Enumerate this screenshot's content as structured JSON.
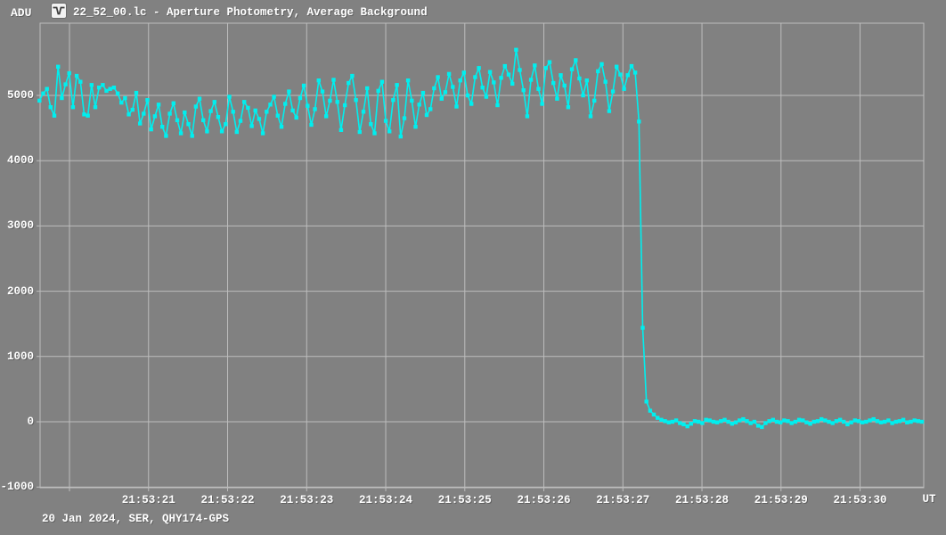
{
  "header": {
    "y_axis_unit": "ADU",
    "icon": "lightcurve-dip-icon",
    "title": "22_52_00.lc - Aperture Photometry, Average Background"
  },
  "footer": {
    "recording_info": "20 Jan 2024, SER, QHY174-GPS",
    "x_axis_unit": "UT"
  },
  "colors": {
    "background": "#818181",
    "grid": "#bdbdbd",
    "text": "#ffffff",
    "curve": "#00efef"
  },
  "chart_data": {
    "type": "line",
    "title": "22_52_00.lc - Aperture Photometry, Average Background",
    "xlabel": "UT",
    "ylabel": "ADU",
    "grid": true,
    "legend": false,
    "marker": "square",
    "description": "Aperture photometry light curve of average background; flux ~5000 ADU drops sharply to ~0 ADU at about 21:53:27.2 UT (occultation-style drop).",
    "t_range": [
      19.628,
      30.805
    ],
    "v_range": [
      -1011,
      6107
    ],
    "y_ticks": [
      {
        "v": 5000,
        "label": "5000"
      },
      {
        "v": 4000,
        "label": "4000"
      },
      {
        "v": 3000,
        "label": "3000"
      },
      {
        "v": 2000,
        "label": "2000"
      },
      {
        "v": 1000,
        "label": "1000"
      },
      {
        "v": 0,
        "label": "0"
      },
      {
        "v": -1000,
        "label": "-1000"
      }
    ],
    "x_ticks": [
      {
        "t": 20,
        "label": ""
      },
      {
        "t": 21,
        "label": "21:53:21"
      },
      {
        "t": 22,
        "label": "21:53:22"
      },
      {
        "t": 23,
        "label": "21:53:23"
      },
      {
        "t": 24,
        "label": "21:53:24"
      },
      {
        "t": 25,
        "label": "21:53:25"
      },
      {
        "t": 26,
        "label": "21:53:26"
      },
      {
        "t": 27,
        "label": "21:53:27"
      },
      {
        "t": 28,
        "label": "21:53:28"
      },
      {
        "t": 29,
        "label": "21:53:29"
      },
      {
        "t": 30,
        "label": "21:53:30"
      }
    ],
    "time_base": "seconds after 21:53:00 UT",
    "t_start": 19.62,
    "dt": 0.0471,
    "adu": [
      4920,
      5030,
      5100,
      4820,
      4690,
      5440,
      4960,
      5170,
      5340,
      4820,
      5300,
      5210,
      4710,
      4690,
      5160,
      4820,
      5120,
      5160,
      5070,
      5100,
      5120,
      5030,
      4890,
      4960,
      4710,
      4780,
      5040,
      4570,
      4720,
      4930,
      4480,
      4680,
      4860,
      4520,
      4380,
      4720,
      4880,
      4620,
      4420,
      4740,
      4560,
      4380,
      4830,
      4950,
      4620,
      4450,
      4760,
      4900,
      4670,
      4450,
      4560,
      4980,
      4750,
      4440,
      4610,
      4900,
      4810,
      4530,
      4770,
      4640,
      4420,
      4750,
      4860,
      4980,
      4690,
      4520,
      4870,
      5060,
      4770,
      4660,
      4960,
      5150,
      4840,
      4550,
      4790,
      5230,
      5060,
      4680,
      4920,
      5240,
      4900,
      4470,
      4850,
      5190,
      5300,
      4930,
      4440,
      4750,
      5110,
      4560,
      4420,
      5070,
      5210,
      4610,
      4450,
      4930,
      5160,
      4370,
      4650,
      5230,
      4920,
      4520,
      4860,
      5040,
      4700,
      4790,
      5110,
      5280,
      4950,
      5050,
      5330,
      5130,
      4830,
      5230,
      5350,
      5000,
      4870,
      5280,
      5420,
      5120,
      4980,
      5360,
      5200,
      4850,
      5270,
      5450,
      5320,
      5180,
      5700,
      5390,
      5080,
      4680,
      5240,
      5460,
      5100,
      4870,
      5420,
      5510,
      5190,
      4950,
      5310,
      5150,
      4820,
      5400,
      5540,
      5260,
      5000,
      5230,
      4680,
      4920,
      5370,
      5480,
      5210,
      4760,
      5060,
      5440,
      5320,
      5100,
      5310,
      5450,
      5350,
      4600,
      1440,
      310,
      170,
      110,
      60,
      30,
      10,
      -10,
      0,
      20,
      -20,
      -40,
      -70,
      -30,
      10,
      0,
      -20,
      30,
      20,
      0,
      -10,
      10,
      30,
      0,
      -30,
      -10,
      20,
      40,
      10,
      -20,
      0,
      -60,
      -80,
      -20,
      10,
      30,
      0,
      -10,
      20,
      10,
      -20,
      0,
      30,
      20,
      -10,
      -30,
      0,
      10,
      40,
      20,
      0,
      -20,
      10,
      30,
      0,
      -40,
      -10,
      20,
      10,
      -10,
      0,
      20,
      40,
      10,
      -10,
      0,
      20,
      -20,
      0,
      10,
      30,
      -10,
      0,
      20,
      10,
      0
    ]
  }
}
